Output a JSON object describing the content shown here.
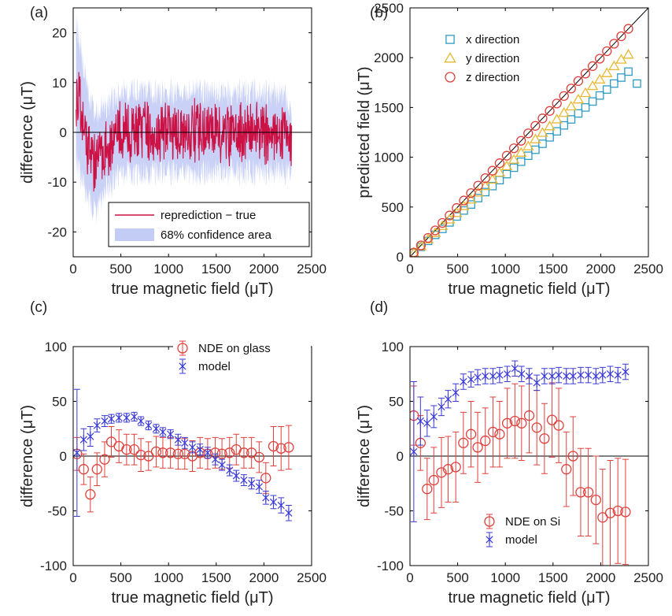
{
  "chart_data": [
    {
      "type": "line",
      "panel_label": "(a)",
      "xlabel": "true magnetic field (μT)",
      "ylabel": "difference (μT)",
      "xlim": [
        0,
        2500
      ],
      "ylim": [
        -25,
        25
      ],
      "xticks": [
        0,
        500,
        1000,
        1500,
        2000,
        2500
      ],
      "yticks": [
        -20,
        -10,
        0,
        10,
        20
      ],
      "zero_line": true,
      "legend_position": "bottom-right",
      "x_range": [
        30,
        2290
      ],
      "series": [
        {
          "name": "reprediction − true",
          "color": "#cc1144",
          "kind": "line",
          "x": [
            30,
            60,
            100,
            150,
            200,
            250,
            300,
            400,
            500,
            700,
            1000,
            1300,
            1600,
            1900,
            2200,
            2290
          ],
          "values": [
            8,
            6,
            2,
            -2,
            -5,
            -6,
            -4,
            -2,
            0,
            0,
            0,
            0,
            0,
            0,
            0,
            -2
          ]
        },
        {
          "name": "68% confidence area",
          "color": "#c3ccf5",
          "kind": "band",
          "x": [
            30,
            100,
            200,
            300,
            500,
            800,
            1100,
            1400,
            1700,
            2000,
            2290
          ],
          "values": [
            14,
            12,
            10,
            9,
            8,
            8,
            8,
            8,
            8,
            8,
            7
          ]
        }
      ]
    },
    {
      "type": "scatter",
      "panel_label": "(b)",
      "xlabel": "true magnetic field (μT)",
      "ylabel": "predicted field (μT)",
      "xlim": [
        0,
        2500
      ],
      "ylim": [
        0,
        2500
      ],
      "xticks": [
        0,
        500,
        1000,
        1500,
        2000,
        2500
      ],
      "yticks": [
        0,
        500,
        1000,
        1500,
        2000,
        2500
      ],
      "reference_line": "y = x",
      "legend_position": "top-left",
      "series": [
        {
          "name": "x direction",
          "marker": "square",
          "color": "#2e9bc4",
          "x": [
            40,
            115,
            190,
            265,
            340,
            415,
            490,
            565,
            640,
            715,
            790,
            865,
            940,
            1015,
            1090,
            1165,
            1240,
            1315,
            1390,
            1465,
            1540,
            1615,
            1690,
            1765,
            1840,
            1915,
            1990,
            2065,
            2140,
            2215,
            2290,
            2380
          ],
          "values": [
            38,
            100,
            160,
            220,
            280,
            345,
            405,
            465,
            525,
            590,
            650,
            710,
            770,
            830,
            895,
            955,
            1015,
            1075,
            1135,
            1200,
            1260,
            1320,
            1380,
            1440,
            1500,
            1560,
            1620,
            1680,
            1740,
            1800,
            1860,
            1740
          ]
        },
        {
          "name": "y direction",
          "marker": "triangle",
          "color": "#e8b832",
          "x": [
            40,
            115,
            190,
            265,
            340,
            415,
            490,
            565,
            640,
            715,
            790,
            865,
            940,
            1015,
            1090,
            1165,
            1240,
            1315,
            1390,
            1465,
            1540,
            1615,
            1690,
            1765,
            1840,
            1915,
            1990,
            2065,
            2140,
            2215,
            2290
          ],
          "values": [
            40,
            105,
            175,
            240,
            310,
            375,
            440,
            510,
            575,
            645,
            710,
            775,
            845,
            910,
            975,
            1045,
            1110,
            1180,
            1245,
            1310,
            1380,
            1445,
            1510,
            1580,
            1645,
            1715,
            1780,
            1845,
            1915,
            1980,
            2030
          ]
        },
        {
          "name": "z direction",
          "marker": "circle",
          "color": "#e0403c",
          "x": [
            40,
            115,
            190,
            265,
            340,
            415,
            490,
            565,
            640,
            715,
            790,
            865,
            940,
            1015,
            1090,
            1165,
            1240,
            1315,
            1390,
            1465,
            1540,
            1615,
            1690,
            1765,
            1840,
            1915,
            1990,
            2065,
            2140,
            2215,
            2290
          ],
          "values": [
            42,
            115,
            190,
            265,
            340,
            415,
            490,
            565,
            640,
            715,
            790,
            865,
            940,
            1015,
            1090,
            1165,
            1240,
            1315,
            1390,
            1465,
            1540,
            1615,
            1690,
            1765,
            1840,
            1915,
            1990,
            2065,
            2140,
            2215,
            2290
          ]
        }
      ]
    },
    {
      "type": "scatter",
      "panel_label": "(c)",
      "xlabel": "true magnetic field (μT)",
      "ylabel": "difference (μT)",
      "xlim": [
        0,
        2500
      ],
      "ylim": [
        -100,
        100
      ],
      "xticks": [
        0,
        500,
        1000,
        1500,
        2000,
        2500
      ],
      "yticks": [
        -100,
        -50,
        0,
        50,
        100
      ],
      "zero_line": true,
      "legend_position": "top-right",
      "series": [
        {
          "name": "NDE on glass",
          "marker": "circle",
          "color": "#e0403c",
          "x": [
            40,
            110,
            180,
            250,
            330,
            400,
            480,
            560,
            640,
            710,
            790,
            870,
            940,
            1020,
            1100,
            1170,
            1250,
            1330,
            1410,
            1490,
            1560,
            1640,
            1710,
            1790,
            1870,
            1950,
            2020,
            2100,
            2180,
            2260
          ],
          "values": [
            2,
            -12,
            -35,
            -12,
            -3,
            13,
            9,
            6,
            6,
            1,
            0,
            4,
            3,
            3,
            2,
            2,
            0,
            3,
            2,
            3,
            2,
            3,
            6,
            3,
            3,
            -1,
            -20,
            9,
            7,
            8
          ],
          "errors": [
            15,
            14,
            16,
            15,
            16,
            14,
            15,
            14,
            14,
            15,
            13,
            14,
            14,
            14,
            14,
            14,
            14,
            14,
            14,
            14,
            14,
            14,
            14,
            14,
            14,
            14,
            14,
            18,
            20,
            20
          ]
        },
        {
          "name": "model",
          "marker": "x",
          "color": "#3a3ad8",
          "x": [
            40,
            110,
            180,
            250,
            330,
            400,
            480,
            560,
            640,
            710,
            790,
            870,
            940,
            1020,
            1100,
            1170,
            1250,
            1330,
            1410,
            1490,
            1560,
            1640,
            1710,
            1790,
            1870,
            1950,
            2020,
            2100,
            2180,
            2260
          ],
          "values": [
            3,
            15,
            18,
            28,
            32,
            34,
            35,
            35,
            36,
            32,
            28,
            25,
            22,
            20,
            15,
            12,
            8,
            6,
            3,
            -3,
            -8,
            -13,
            -18,
            -22,
            -25,
            -28,
            -38,
            -42,
            -45,
            -52
          ],
          "errors": [
            58,
            10,
            9,
            6,
            5,
            4,
            4,
            4,
            4,
            4,
            4,
            4,
            4,
            4,
            5,
            5,
            5,
            5,
            5,
            5,
            5,
            5,
            5,
            5,
            5,
            6,
            6,
            6,
            7,
            7
          ]
        }
      ]
    },
    {
      "type": "scatter",
      "panel_label": "(d)",
      "xlabel": "true magnetic field (μT)",
      "ylabel": "difference (μT)",
      "xlim": [
        0,
        2500
      ],
      "ylim": [
        -100,
        100
      ],
      "xticks": [
        0,
        500,
        1000,
        1500,
        2000,
        2500
      ],
      "yticks": [
        -100,
        -50,
        0,
        50,
        100
      ],
      "zero_line": true,
      "legend_position": "bottom-right",
      "series": [
        {
          "name": "NDE on Si",
          "marker": "circle",
          "color": "#e0403c",
          "x": [
            40,
            110,
            180,
            250,
            330,
            400,
            480,
            560,
            640,
            710,
            790,
            870,
            940,
            1020,
            1100,
            1170,
            1250,
            1330,
            1410,
            1490,
            1560,
            1640,
            1710,
            1790,
            1870,
            1950,
            2020,
            2100,
            2180,
            2260
          ],
          "values": [
            37,
            12,
            -30,
            -22,
            -15,
            -12,
            -10,
            12,
            20,
            8,
            14,
            22,
            20,
            30,
            32,
            30,
            37,
            26,
            16,
            33,
            28,
            -12,
            0,
            -33,
            -33,
            -40,
            -56,
            -52,
            -50,
            -51
          ],
          "errors": [
            27,
            25,
            28,
            30,
            32,
            30,
            32,
            28,
            30,
            32,
            30,
            32,
            30,
            32,
            34,
            34,
            34,
            34,
            32,
            34,
            34,
            34,
            36,
            40,
            40,
            40,
            44,
            48,
            48,
            48
          ]
        },
        {
          "name": "model",
          "marker": "x",
          "color": "#3a3ad8",
          "x": [
            40,
            110,
            180,
            250,
            330,
            400,
            480,
            560,
            640,
            710,
            790,
            870,
            940,
            1020,
            1100,
            1170,
            1250,
            1330,
            1410,
            1490,
            1560,
            1640,
            1710,
            1790,
            1870,
            1950,
            2020,
            2100,
            2180,
            2260
          ],
          "values": [
            4,
            32,
            30,
            36,
            45,
            52,
            58,
            68,
            70,
            72,
            73,
            73,
            74,
            75,
            80,
            75,
            73,
            67,
            73,
            73,
            74,
            73,
            73,
            74,
            74,
            73,
            74,
            75,
            74,
            77
          ],
          "errors": [
            64,
            22,
            12,
            10,
            8,
            8,
            8,
            7,
            7,
            7,
            7,
            7,
            7,
            7,
            7,
            7,
            7,
            7,
            7,
            7,
            7,
            7,
            7,
            7,
            7,
            7,
            7,
            7,
            7,
            7
          ]
        }
      ]
    }
  ]
}
